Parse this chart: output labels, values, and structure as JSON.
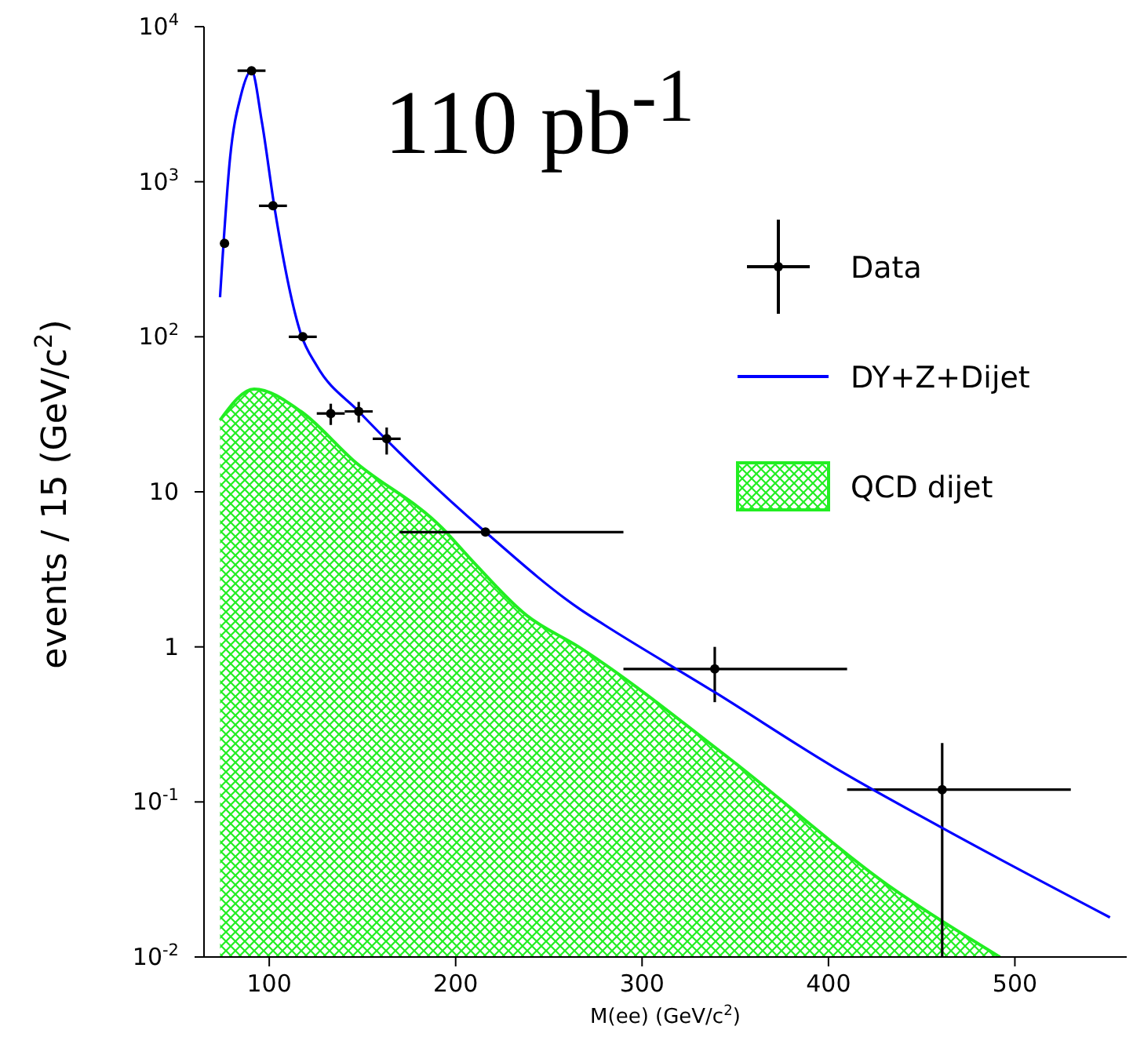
{
  "chart_data": {
    "type": "scatter",
    "xlabel": "M(ee) (GeV/c$^{2}$)",
    "ylabel": "events / 15 (GeV/c$^{2}$)",
    "annotations": [
      "110 pb$^{-1}$"
    ],
    "xlim": [
      65,
      560
    ],
    "xticks": [
      100,
      200,
      300,
      400,
      500
    ],
    "ylim": [
      0.01,
      10000
    ],
    "yticks": [
      {
        "value": 0.01,
        "label": "10$^{-2}$"
      },
      {
        "value": 0.1,
        "label": "10$^{-1}$"
      },
      1,
      10,
      {
        "value": 100,
        "label": "10$^{2}$"
      },
      {
        "value": 1000,
        "label": "10$^{3}$"
      },
      {
        "value": 10000,
        "label": "10$^{4}$"
      }
    ],
    "log": "y",
    "legend": "top right",
    "series": [
      {
        "name": "Data",
        "color": "#000000",
        "marker": "circle",
        "x": [
          76,
          90.5,
          102,
          118,
          133,
          148,
          163,
          216,
          339,
          461
        ],
        "values": [
          400,
          5200,
          700,
          100,
          32,
          33,
          22,
          5.5,
          0.72,
          0.12
        ],
        "xerrors": [
          null,
          7.5,
          7.5,
          7.5,
          7.5,
          7.5,
          7.5,
          [
            170,
            290
          ],
          [
            290,
            410
          ],
          [
            410,
            530
          ]
        ],
        "errors": [
          null,
          null,
          null,
          null,
          [
            27,
            37
          ],
          [
            28,
            38
          ],
          [
            17.4,
            26
          ],
          null,
          [
            0.44,
            1.0
          ],
          [
            0.01,
            0.24
          ]
        ]
      },
      {
        "name": "DY+Z+Dijet",
        "type": "line",
        "color": "#0000ff",
        "line_style": "solid",
        "x": [
          73.6,
          79,
          84.8,
          90.5,
          96,
          103,
          117,
          125.5,
          148,
          179,
          216,
          267,
          280,
          339,
          403.5,
          460,
          551
        ],
        "values": [
          180,
          1430,
          3600,
          5200,
          2450,
          660,
          104,
          65,
          33,
          14,
          5.5,
          1.74,
          1.38,
          0.51,
          0.166,
          0.069,
          0.018
        ]
      },
      {
        "name": "QCD dijet",
        "type": "area",
        "color": "#22ee22",
        "x": [
          73.6,
          91.9,
          117,
          145,
          193,
          207,
          238,
          266,
          347,
          432,
          492
        ],
        "values": [
          29,
          46,
          33,
          16,
          5.8,
          3.8,
          1.6,
          1.0,
          0.19,
          0.029,
          0.01
        ]
      }
    ]
  }
}
